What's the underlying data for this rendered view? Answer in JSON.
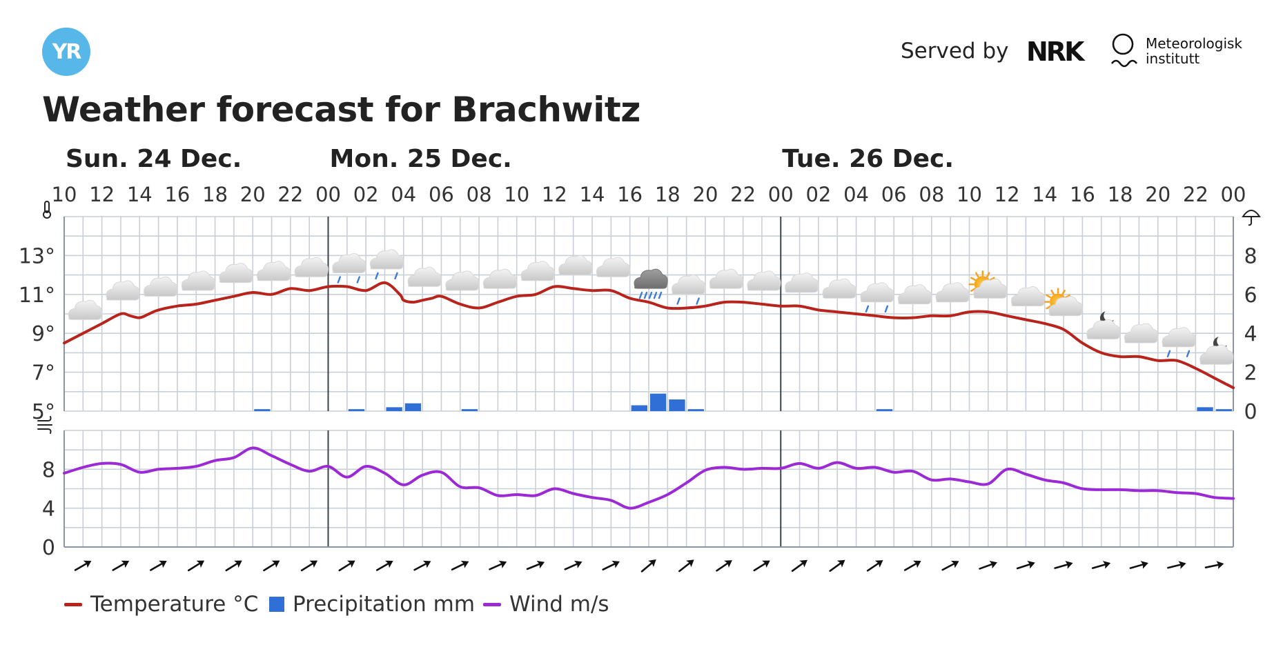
{
  "header": {
    "logo_text": "YR",
    "served_by": "Served by",
    "nrk_logo": "NRK",
    "met_line1": "Meteorologisk",
    "met_line2": "institutt"
  },
  "title": "Weather forecast for Brachwitz",
  "colors": {
    "temperature": "#b8241c",
    "precipitation": "#2f6fd6",
    "wind": "#9b2ad6",
    "grid": "#c9cfd6",
    "day_divider": "#3a4350"
  },
  "legend": [
    {
      "label": "Temperature °C",
      "kind": "line",
      "color": "#b8241c"
    },
    {
      "label": "Precipitation mm",
      "kind": "box",
      "color": "#2f6fd6"
    },
    {
      "label": "Wind m/s",
      "kind": "line",
      "color": "#9b2ad6"
    }
  ],
  "chart_data": {
    "type": "line",
    "day_labels": [
      {
        "label": "Sun. 24 Dec.",
        "hour": 10
      },
      {
        "label": "Mon. 25 Dec.",
        "hour": 24
      },
      {
        "label": "Tue. 26 Dec.",
        "hour": 48
      }
    ],
    "hour_ticks": [
      "10",
      "12",
      "14",
      "16",
      "18",
      "20",
      "22",
      "00",
      "02",
      "04",
      "06",
      "08",
      "10",
      "12",
      "14",
      "16",
      "18",
      "20",
      "22",
      "00",
      "02",
      "04",
      "06",
      "08",
      "10",
      "12",
      "14",
      "16",
      "18",
      "20",
      "22",
      "00"
    ],
    "x_range_hours": [
      10,
      72
    ],
    "temperature": {
      "name": "Temperature °C",
      "ylim": [
        5,
        15
      ],
      "ticks": [
        "13°",
        "11°",
        "9°",
        "7°",
        "5°"
      ],
      "tick_values": [
        13,
        11,
        9,
        7,
        5
      ],
      "x": [
        10,
        11,
        12,
        13,
        13.5,
        14,
        14.5,
        15,
        16,
        17,
        18,
        19,
        20,
        21,
        22,
        23,
        24,
        25,
        26,
        27,
        27.8,
        28,
        28.5,
        29,
        29.5,
        30,
        31,
        32,
        33,
        34,
        35,
        36,
        37,
        38,
        39,
        40,
        41,
        42,
        43,
        44,
        45,
        46,
        47,
        48,
        49,
        50,
        51,
        52,
        53,
        54,
        55,
        56,
        57,
        58,
        59,
        60,
        61,
        62,
        63,
        64,
        65,
        66,
        67,
        68,
        69,
        70,
        71,
        72
      ],
      "values": [
        8.5,
        9.0,
        9.5,
        10.0,
        9.9,
        9.8,
        10.0,
        10.2,
        10.4,
        10.5,
        10.7,
        10.9,
        11.1,
        11.0,
        11.3,
        11.2,
        11.4,
        11.4,
        11.2,
        11.6,
        11.0,
        10.7,
        10.6,
        10.7,
        10.8,
        10.9,
        10.5,
        10.3,
        10.6,
        10.9,
        11.0,
        11.4,
        11.3,
        11.2,
        11.2,
        10.8,
        10.6,
        10.3,
        10.3,
        10.4,
        10.6,
        10.6,
        10.5,
        10.4,
        10.4,
        10.2,
        10.1,
        10.0,
        9.9,
        9.8,
        9.8,
        9.9,
        9.9,
        10.1,
        10.1,
        9.9,
        9.7,
        9.5,
        9.2,
        8.5,
        8.0,
        7.8,
        7.8,
        7.6,
        7.6,
        7.2,
        6.7,
        6.2
      ]
    },
    "precipitation": {
      "name": "Precipitation mm",
      "ylim": [
        0,
        10
      ],
      "ticks": [
        "8",
        "6",
        "4",
        "2",
        "0"
      ],
      "tick_values": [
        8,
        6,
        4,
        2,
        0
      ],
      "bars": [
        {
          "hour": 20,
          "value": 0.1
        },
        {
          "hour": 25,
          "value": 0.1
        },
        {
          "hour": 27,
          "value": 0.2
        },
        {
          "hour": 28,
          "value": 0.4
        },
        {
          "hour": 31,
          "value": 0.1
        },
        {
          "hour": 40,
          "value": 0.3
        },
        {
          "hour": 41,
          "value": 0.9
        },
        {
          "hour": 42,
          "value": 0.6
        },
        {
          "hour": 43,
          "value": 0.1
        },
        {
          "hour": 53,
          "value": 0.1
        },
        {
          "hour": 70,
          "value": 0.2
        },
        {
          "hour": 71,
          "value": 0.1
        }
      ]
    },
    "wind": {
      "name": "Wind m/s",
      "ylim": [
        0,
        12
      ],
      "ticks": [
        "8",
        "4",
        "0"
      ],
      "tick_values": [
        8,
        4,
        0
      ],
      "x": [
        10,
        11,
        12,
        13,
        14,
        15,
        16,
        17,
        18,
        19,
        20,
        21,
        22,
        23,
        24,
        25,
        26,
        27,
        28,
        29,
        30,
        31,
        32,
        33,
        34,
        35,
        36,
        37,
        38,
        39,
        40,
        41,
        42,
        43,
        44,
        45,
        46,
        47,
        48,
        49,
        50,
        51,
        52,
        53,
        54,
        55,
        56,
        57,
        58,
        59,
        60,
        61,
        62,
        63,
        64,
        65,
        66,
        67,
        68,
        69,
        70,
        71,
        72
      ],
      "values": [
        7.6,
        8.2,
        8.6,
        8.5,
        7.7,
        8.0,
        8.1,
        8.3,
        8.9,
        9.2,
        10.2,
        9.4,
        8.5,
        7.8,
        8.3,
        7.2,
        8.3,
        7.6,
        6.4,
        7.4,
        7.7,
        6.2,
        6.1,
        5.3,
        5.4,
        5.3,
        6.0,
        5.5,
        5.1,
        4.8,
        4.0,
        4.6,
        5.4,
        6.6,
        7.9,
        8.2,
        8.0,
        8.1,
        8.1,
        8.6,
        8.1,
        8.7,
        8.1,
        8.2,
        7.7,
        7.8,
        6.9,
        7.0,
        6.7,
        6.5,
        8.0,
        7.5,
        6.9,
        6.6,
        6.0,
        5.9,
        5.9,
        5.8,
        5.8,
        5.6,
        5.5,
        5.1,
        5.0
      ]
    },
    "symbols": [
      {
        "hour": 11,
        "icon": "cloudy"
      },
      {
        "hour": 13,
        "icon": "cloudy"
      },
      {
        "hour": 15,
        "icon": "cloudy"
      },
      {
        "hour": 17,
        "icon": "cloudy"
      },
      {
        "hour": 19,
        "icon": "cloudy"
      },
      {
        "hour": 21,
        "icon": "cloudy"
      },
      {
        "hour": 23,
        "icon": "cloudy"
      },
      {
        "hour": 25,
        "icon": "light-rain"
      },
      {
        "hour": 27,
        "icon": "light-rain"
      },
      {
        "hour": 29,
        "icon": "cloudy"
      },
      {
        "hour": 31,
        "icon": "cloudy"
      },
      {
        "hour": 33,
        "icon": "cloudy"
      },
      {
        "hour": 35,
        "icon": "cloudy"
      },
      {
        "hour": 37,
        "icon": "cloudy"
      },
      {
        "hour": 39,
        "icon": "cloudy"
      },
      {
        "hour": 41,
        "icon": "rain"
      },
      {
        "hour": 43,
        "icon": "light-rain"
      },
      {
        "hour": 45,
        "icon": "cloudy"
      },
      {
        "hour": 47,
        "icon": "cloudy"
      },
      {
        "hour": 49,
        "icon": "cloudy"
      },
      {
        "hour": 51,
        "icon": "cloudy"
      },
      {
        "hour": 53,
        "icon": "light-rain"
      },
      {
        "hour": 55,
        "icon": "cloudy"
      },
      {
        "hour": 57,
        "icon": "cloudy"
      },
      {
        "hour": 59,
        "icon": "partly-cloudy-day"
      },
      {
        "hour": 61,
        "icon": "cloudy"
      },
      {
        "hour": 63,
        "icon": "partly-cloudy-day"
      },
      {
        "hour": 65,
        "icon": "cloudy-night"
      },
      {
        "hour": 67,
        "icon": "cloudy"
      },
      {
        "hour": 69,
        "icon": "light-rain"
      },
      {
        "hour": 71,
        "icon": "cloudy-night"
      }
    ],
    "wind_direction": {
      "hours": [
        11,
        13,
        15,
        17,
        19,
        21,
        23,
        25,
        27,
        29,
        31,
        33,
        35,
        37,
        39,
        41,
        43,
        45,
        47,
        49,
        51,
        53,
        55,
        57,
        59,
        61,
        63,
        65,
        67,
        69,
        71
      ],
      "blowing_towards_deg": [
        60,
        60,
        60,
        58,
        58,
        58,
        58,
        58,
        60,
        62,
        64,
        66,
        68,
        66,
        64,
        50,
        52,
        56,
        58,
        54,
        54,
        56,
        60,
        62,
        70,
        72,
        74,
        74,
        74,
        76,
        78
      ]
    }
  }
}
